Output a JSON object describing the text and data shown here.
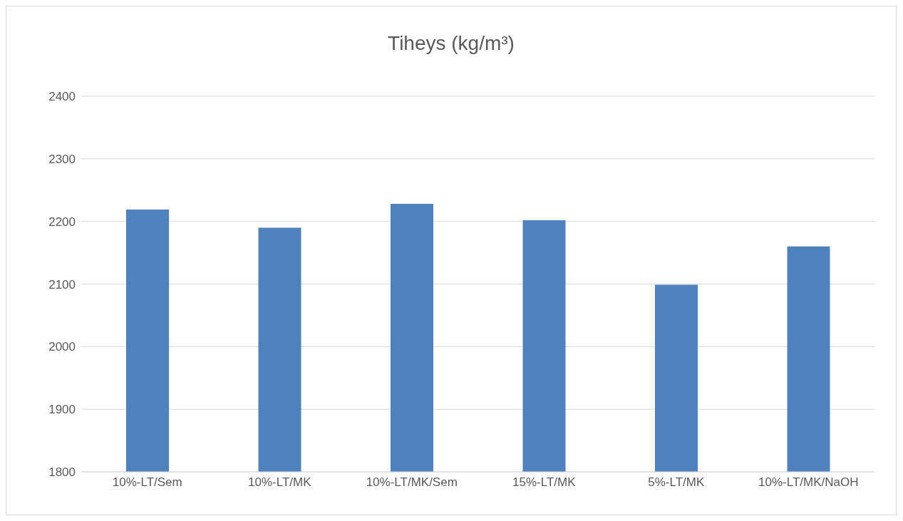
{
  "chart_data": {
    "type": "bar",
    "title": "Tiheys (kg/m³)",
    "categories": [
      "10%-LT/Sem",
      "10%-LT/MK",
      "10%-LT/MK/Sem",
      "15%-LT/MK",
      "5%-LT/MK",
      "10%-LT/MK/NaOH"
    ],
    "values": [
      2219,
      2190,
      2228,
      2202,
      2099,
      2160
    ],
    "color": "#4f81bd",
    "ylim": [
      1800,
      2400
    ],
    "yticks": [
      1800,
      1900,
      2000,
      2100,
      2200,
      2300,
      2400
    ],
    "grid": "y"
  }
}
